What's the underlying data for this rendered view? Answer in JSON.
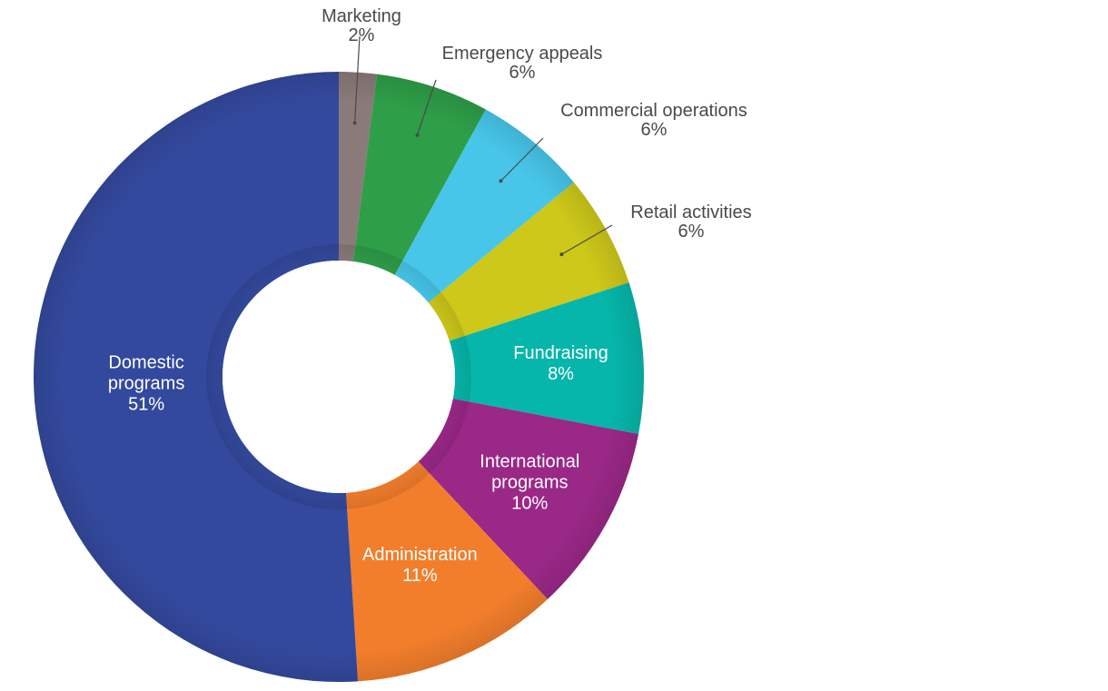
{
  "chart_data": {
    "type": "pie",
    "donut": true,
    "title": "",
    "start_angle_deg": 0,
    "direction": "clockwise",
    "slices": [
      {
        "name": "Marketing",
        "label_lines": [
          "Marketing"
        ],
        "pct_label": "2%",
        "value": 2,
        "color": "#8a7a7a",
        "label_position": "outside"
      },
      {
        "name": "Emergency appeals",
        "label_lines": [
          "Emergency appeals"
        ],
        "pct_label": "6%",
        "value": 6,
        "color": "#2e9e48",
        "label_position": "outside"
      },
      {
        "name": "Commercial operations",
        "label_lines": [
          "Commercial operations"
        ],
        "pct_label": "6%",
        "value": 6,
        "color": "#47c6ea",
        "label_position": "outside"
      },
      {
        "name": "Retail activities",
        "label_lines": [
          "Retail activities"
        ],
        "pct_label": "6%",
        "value": 6,
        "color": "#cdc81a",
        "label_position": "outside"
      },
      {
        "name": "Fundraising",
        "label_lines": [
          "Fundraising"
        ],
        "pct_label": "8%",
        "value": 8,
        "color": "#06b6aa",
        "label_position": "inside"
      },
      {
        "name": "International programs",
        "label_lines": [
          "International",
          "programs"
        ],
        "pct_label": "10%",
        "value": 10,
        "color": "#9a2887",
        "label_position": "inside"
      },
      {
        "name": "Administration",
        "label_lines": [
          "Administration"
        ],
        "pct_label": "11%",
        "value": 11,
        "color": "#f27e2c",
        "label_position": "inside"
      },
      {
        "name": "Domestic programs",
        "label_lines": [
          "Domestic",
          "programs"
        ],
        "pct_label": "51%",
        "value": 51,
        "color": "#33499d",
        "label_position": "inside"
      }
    ]
  }
}
